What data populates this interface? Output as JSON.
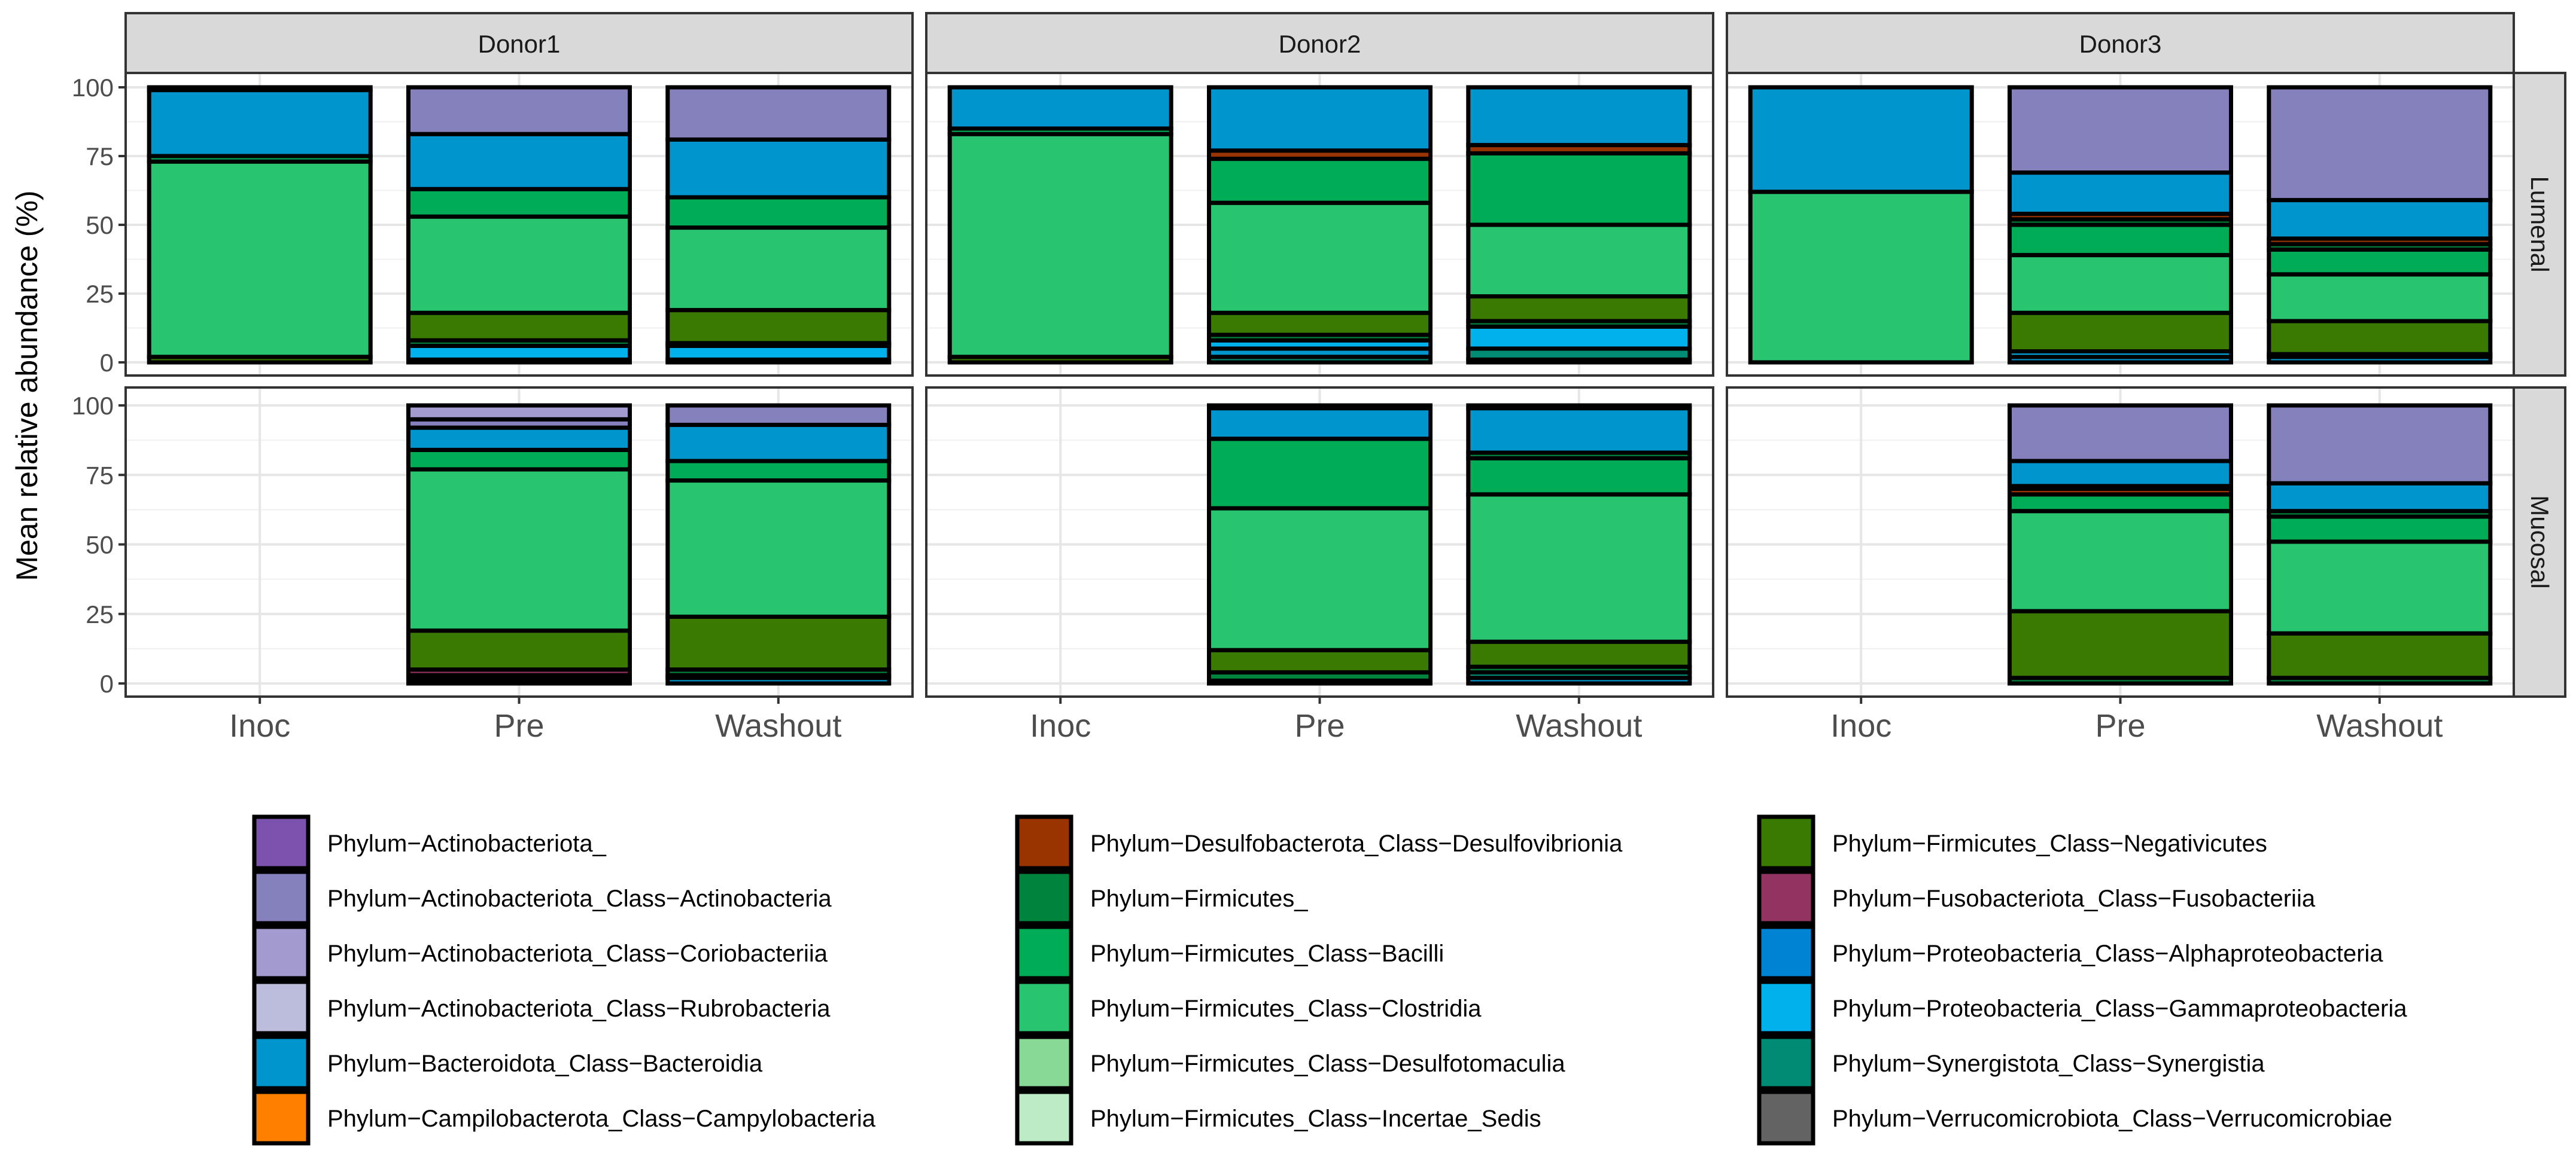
{
  "chart_data": {
    "type": "bar",
    "stacked": true,
    "ylabel": "Mean relative abundance (%)",
    "xlabel": "",
    "ylim": [
      0,
      100
    ],
    "yticks": [
      "0",
      "25",
      "50",
      "75",
      "100"
    ],
    "categories": [
      "Inoc",
      "Pre",
      "Washout"
    ],
    "donors": [
      "Donor1",
      "Donor2",
      "Donor3"
    ],
    "sites": [
      "Lumenal",
      "Mucosal"
    ],
    "grid": true,
    "legend_position": "bottom",
    "legend": [
      {
        "label": "Phylum−Actinobacteriota_",
        "color": "#7B52AE"
      },
      {
        "label": "Phylum−Actinobacteriota_Class−Actinobacteria",
        "color": "#8581BD"
      },
      {
        "label": "Phylum−Actinobacteriota_Class−Coriobacteriia",
        "color": "#A39AD0"
      },
      {
        "label": "Phylum−Actinobacteriota_Class−Rubrobacteria",
        "color": "#BCBDDC"
      },
      {
        "label": "Phylum−Bacteroidota_Class−Bacteroidia",
        "color": "#0095CD"
      },
      {
        "label": "Phylum−Campilobacterota_Class−Campylobacteria",
        "color": "#FF7F00"
      },
      {
        "label": "Phylum−Desulfobacterota_Class−Desulfovibrionia",
        "color": "#993300"
      },
      {
        "label": "Phylum−Firmicutes_",
        "color": "#00843D"
      },
      {
        "label": "Phylum−Firmicutes_Class−Bacilli",
        "color": "#00AC55"
      },
      {
        "label": "Phylum−Firmicutes_Class−Clostridia",
        "color": "#28C470"
      },
      {
        "label": "Phylum−Firmicutes_Class−Desulfotomaculia",
        "color": "#89D996"
      },
      {
        "label": "Phylum−Firmicutes_Class−Incertae_Sedis",
        "color": "#BCEBC5"
      },
      {
        "label": "Phylum−Firmicutes_Class−Negativicutes",
        "color": "#3B7A00"
      },
      {
        "label": "Phylum−Fusobacteriota_Class−Fusobacteriia",
        "color": "#923361"
      },
      {
        "label": "Phylum−Proteobacteria_Class−Alphaproteobacteria",
        "color": "#0083D3"
      },
      {
        "label": "Phylum−Proteobacteria_Class−Gammaproteobacteria",
        "color": "#00B1EB"
      },
      {
        "label": "Phylum−Synergistota_Class−Synergistia",
        "color": "#008B74"
      },
      {
        "label": "Phylum−Verrucomicrobiota_Class−Verrucomicrobiae",
        "color": "#636363"
      }
    ],
    "panels": [
      {
        "site": "Lumenal",
        "donor": "Donor1",
        "bars": [
          {
            "category": "Inoc",
            "segments": [
              {
                "taxon": "Phylum−Firmicutes_Class−Negativicutes",
                "value": 2
              },
              {
                "taxon": "Phylum−Firmicutes_Class−Clostridia",
                "value": 71
              },
              {
                "taxon": "Phylum−Firmicutes_Class−Bacilli",
                "value": 2
              },
              {
                "taxon": "Phylum−Bacteroidota_Class−Bacteroidia",
                "value": 24
              },
              {
                "taxon": "Phylum−Desulfobacterota_Class−Desulfovibrionia",
                "value": 1
              }
            ]
          },
          {
            "category": "Pre",
            "segments": [
              {
                "taxon": "Phylum−Bacteroidota_Class−Bacteroidia",
                "value": 1
              },
              {
                "taxon": "Phylum−Proteobacteria_Class−Gammaproteobacteria",
                "value": 5
              },
              {
                "taxon": "Phylum−Firmicutes_",
                "value": 2
              },
              {
                "taxon": "Phylum−Firmicutes_Class−Negativicutes",
                "value": 10
              },
              {
                "taxon": "Phylum−Firmicutes_Class−Clostridia",
                "value": 35
              },
              {
                "taxon": "Phylum−Firmicutes_Class−Bacilli",
                "value": 10
              },
              {
                "taxon": "Phylum−Bacteroidota_Class−Bacteroidia",
                "value": 20
              },
              {
                "taxon": "Phylum−Actinobacteriota_Class−Actinobacteria",
                "value": 17
              }
            ]
          },
          {
            "category": "Washout",
            "segments": [
              {
                "taxon": "Phylum−Bacteroidota_Class−Bacteroidia",
                "value": 1
              },
              {
                "taxon": "Phylum−Proteobacteria_Class−Gammaproteobacteria",
                "value": 5
              },
              {
                "taxon": "Phylum−Firmicutes_",
                "value": 1
              },
              {
                "taxon": "Phylum−Firmicutes_Class−Negativicutes",
                "value": 12
              },
              {
                "taxon": "Phylum−Firmicutes_Class−Clostridia",
                "value": 30
              },
              {
                "taxon": "Phylum−Firmicutes_Class−Bacilli",
                "value": 11
              },
              {
                "taxon": "Phylum−Bacteroidota_Class−Bacteroidia",
                "value": 21
              },
              {
                "taxon": "Phylum−Actinobacteriota_Class−Actinobacteria",
                "value": 19
              }
            ]
          }
        ]
      },
      {
        "site": "Lumenal",
        "donor": "Donor2",
        "bars": [
          {
            "category": "Inoc",
            "segments": [
              {
                "taxon": "Phylum−Firmicutes_Class−Negativicutes",
                "value": 2
              },
              {
                "taxon": "Phylum−Firmicutes_Class−Clostridia",
                "value": 81
              },
              {
                "taxon": "Phylum−Firmicutes_Class−Bacilli",
                "value": 2
              },
              {
                "taxon": "Phylum−Bacteroidota_Class−Bacteroidia",
                "value": 15
              }
            ]
          },
          {
            "category": "Pre",
            "segments": [
              {
                "taxon": "Phylum−Synergistota_Class−Synergistia",
                "value": 2
              },
              {
                "taxon": "Phylum−Bacteroidota_Class−Bacteroidia",
                "value": 3
              },
              {
                "taxon": "Phylum−Proteobacteria_Class−Gammaproteobacteria",
                "value": 3
              },
              {
                "taxon": "Phylum−Firmicutes_",
                "value": 2
              },
              {
                "taxon": "Phylum−Firmicutes_Class−Negativicutes",
                "value": 8
              },
              {
                "taxon": "Phylum−Firmicutes_Class−Clostridia",
                "value": 40
              },
              {
                "taxon": "Phylum−Firmicutes_Class−Bacilli",
                "value": 16
              },
              {
                "taxon": "Phylum−Desulfobacterota_Class−Desulfovibrionia",
                "value": 3
              },
              {
                "taxon": "Phylum−Bacteroidota_Class−Bacteroidia",
                "value": 23
              }
            ]
          },
          {
            "category": "Washout",
            "segments": [
              {
                "taxon": "Phylum−Bacteroidota_Class−Bacteroidia",
                "value": 1
              },
              {
                "taxon": "Phylum−Synergistota_Class−Synergistia",
                "value": 4
              },
              {
                "taxon": "Phylum−Proteobacteria_Class−Gammaproteobacteria",
                "value": 8
              },
              {
                "taxon": "Phylum−Firmicutes_",
                "value": 2
              },
              {
                "taxon": "Phylum−Firmicutes_Class−Negativicutes",
                "value": 9
              },
              {
                "taxon": "Phylum−Firmicutes_Class−Clostridia",
                "value": 26
              },
              {
                "taxon": "Phylum−Firmicutes_Class−Bacilli",
                "value": 26
              },
              {
                "taxon": "Phylum−Desulfobacterota_Class−Desulfovibrionia",
                "value": 3
              },
              {
                "taxon": "Phylum−Bacteroidota_Class−Bacteroidia",
                "value": 21
              }
            ]
          }
        ]
      },
      {
        "site": "Lumenal",
        "donor": "Donor3",
        "bars": [
          {
            "category": "Inoc",
            "segments": [
              {
                "taxon": "Phylum−Firmicutes_Class−Clostridia",
                "value": 62
              },
              {
                "taxon": "Phylum−Bacteroidota_Class−Bacteroidia",
                "value": 38
              }
            ]
          },
          {
            "category": "Pre",
            "segments": [
              {
                "taxon": "Phylum−Bacteroidota_Class−Bacteroidia",
                "value": 2
              },
              {
                "taxon": "Phylum−Proteobacteria_Class−Gammaproteobacteria",
                "value": 2
              },
              {
                "taxon": "Phylum−Firmicutes_Class−Negativicutes",
                "value": 14
              },
              {
                "taxon": "Phylum−Firmicutes_Class−Clostridia",
                "value": 21
              },
              {
                "taxon": "Phylum−Firmicutes_Class−Bacilli",
                "value": 11
              },
              {
                "taxon": "Phylum−Firmicutes_",
                "value": 2
              },
              {
                "taxon": "Phylum−Desulfobacterota_Class−Desulfovibrionia",
                "value": 2
              },
              {
                "taxon": "Phylum−Bacteroidota_Class−Bacteroidia",
                "value": 15
              },
              {
                "taxon": "Phylum−Actinobacteriota_Class−Actinobacteria",
                "value": 31
              }
            ]
          },
          {
            "category": "Washout",
            "segments": [
              {
                "taxon": "Phylum−Bacteroidota_Class−Bacteroidia",
                "value": 2
              },
              {
                "taxon": "Phylum−Proteobacteria_Class−Gammaproteobacteria",
                "value": 1
              },
              {
                "taxon": "Phylum−Firmicutes_Class−Negativicutes",
                "value": 12
              },
              {
                "taxon": "Phylum−Firmicutes_Class−Clostridia",
                "value": 17
              },
              {
                "taxon": "Phylum−Firmicutes_Class−Bacilli",
                "value": 9
              },
              {
                "taxon": "Phylum−Firmicutes_",
                "value": 2
              },
              {
                "taxon": "Phylum−Desulfobacterota_Class−Desulfovibrionia",
                "value": 2
              },
              {
                "taxon": "Phylum−Bacteroidota_Class−Bacteroidia",
                "value": 14
              },
              {
                "taxon": "Phylum−Actinobacteriota_Class−Actinobacteria",
                "value": 41
              }
            ]
          }
        ]
      },
      {
        "site": "Mucosal",
        "donor": "Donor1",
        "bars": [
          {
            "category": "Pre",
            "segments": [
              {
                "taxon": "Phylum−Bacteroidota_Class−Bacteroidia",
                "value": 1
              },
              {
                "taxon": "Phylum−Proteobacteria_Class−Gammaproteobacteria",
                "value": 1
              },
              {
                "taxon": "Phylum−Firmicutes_",
                "value": 1
              },
              {
                "taxon": "Phylum−Fusobacteriota_Class−Fusobacteriia",
                "value": 2
              },
              {
                "taxon": "Phylum−Firmicutes_Class−Negativicutes",
                "value": 14
              },
              {
                "taxon": "Phylum−Firmicutes_Class−Clostridia",
                "value": 58
              },
              {
                "taxon": "Phylum−Firmicutes_Class−Bacilli",
                "value": 7
              },
              {
                "taxon": "Phylum−Bacteroidota_Class−Bacteroidia",
                "value": 8
              },
              {
                "taxon": "Phylum−Actinobacteriota_Class−Actinobacteria",
                "value": 3
              },
              {
                "taxon": "Phylum−Actinobacteriota_Class−Coriobacteriia",
                "value": 5
              }
            ]
          },
          {
            "category": "Washout",
            "segments": [
              {
                "taxon": "Phylum−Bacteroidota_Class−Bacteroidia",
                "value": 2
              },
              {
                "taxon": "Phylum−Proteobacteria_Class−Gammaproteobacteria",
                "value": 1
              },
              {
                "taxon": "Phylum−Firmicutes_",
                "value": 2
              },
              {
                "taxon": "Phylum−Firmicutes_Class−Negativicutes",
                "value": 19
              },
              {
                "taxon": "Phylum−Firmicutes_Class−Clostridia",
                "value": 49
              },
              {
                "taxon": "Phylum−Firmicutes_Class−Bacilli",
                "value": 7
              },
              {
                "taxon": "Phylum−Bacteroidota_Class−Bacteroidia",
                "value": 13
              },
              {
                "taxon": "Phylum−Actinobacteriota_Class−Actinobacteria",
                "value": 7
              }
            ]
          }
        ]
      },
      {
        "site": "Mucosal",
        "donor": "Donor2",
        "bars": [
          {
            "category": "Pre",
            "segments": [
              {
                "taxon": "Phylum−Bacteroidota_Class−Bacteroidia",
                "value": 1
              },
              {
                "taxon": "Phylum−Firmicutes_",
                "value": 3
              },
              {
                "taxon": "Phylum−Firmicutes_Class−Negativicutes",
                "value": 8
              },
              {
                "taxon": "Phylum−Firmicutes_Class−Clostridia",
                "value": 51
              },
              {
                "taxon": "Phylum−Firmicutes_Class−Bacilli",
                "value": 25
              },
              {
                "taxon": "Phylum−Bacteroidota_Class−Bacteroidia",
                "value": 11
              },
              {
                "taxon": "Phylum−Desulfobacterota_Class−Desulfovibrionia",
                "value": 1
              }
            ]
          },
          {
            "category": "Washout",
            "segments": [
              {
                "taxon": "Phylum−Bacteroidota_Class−Bacteroidia",
                "value": 2
              },
              {
                "taxon": "Phylum−Synergistota_Class−Synergistia",
                "value": 2
              },
              {
                "taxon": "Phylum−Firmicutes_",
                "value": 2
              },
              {
                "taxon": "Phylum−Firmicutes_Class−Negativicutes",
                "value": 9
              },
              {
                "taxon": "Phylum−Firmicutes_Class−Clostridia",
                "value": 53
              },
              {
                "taxon": "Phylum−Firmicutes_Class−Bacilli",
                "value": 13
              },
              {
                "taxon": "Phylum−Firmicutes_",
                "value": 2
              },
              {
                "taxon": "Phylum−Bacteroidota_Class−Bacteroidia",
                "value": 16
              },
              {
                "taxon": "Phylum−Desulfobacterota_Class−Desulfovibrionia",
                "value": 1
              }
            ]
          }
        ]
      },
      {
        "site": "Mucosal",
        "donor": "Donor3",
        "bars": [
          {
            "category": "Pre",
            "segments": [
              {
                "taxon": "Phylum−Firmicutes_",
                "value": 2
              },
              {
                "taxon": "Phylum−Firmicutes_Class−Negativicutes",
                "value": 24
              },
              {
                "taxon": "Phylum−Firmicutes_Class−Clostridia",
                "value": 36
              },
              {
                "taxon": "Phylum−Firmicutes_Class−Bacilli",
                "value": 6
              },
              {
                "taxon": "Phylum−Desulfobacterota_Class−Desulfovibrionia",
                "value": 2
              },
              {
                "taxon": "Phylum−Firmicutes_",
                "value": 1
              },
              {
                "taxon": "Phylum−Bacteroidota_Class−Bacteroidia",
                "value": 9
              },
              {
                "taxon": "Phylum−Actinobacteriota_Class−Actinobacteria",
                "value": 20
              }
            ]
          },
          {
            "category": "Washout",
            "segments": [
              {
                "taxon": "Phylum−Firmicutes_",
                "value": 2
              },
              {
                "taxon": "Phylum−Firmicutes_Class−Negativicutes",
                "value": 16
              },
              {
                "taxon": "Phylum−Firmicutes_Class−Clostridia",
                "value": 33
              },
              {
                "taxon": "Phylum−Firmicutes_Class−Bacilli",
                "value": 9
              },
              {
                "taxon": "Phylum−Firmicutes_",
                "value": 2
              },
              {
                "taxon": "Phylum−Bacteroidota_Class−Bacteroidia",
                "value": 10
              },
              {
                "taxon": "Phylum−Actinobacteriota_Class−Actinobacteria",
                "value": 28
              }
            ]
          }
        ]
      }
    ]
  }
}
